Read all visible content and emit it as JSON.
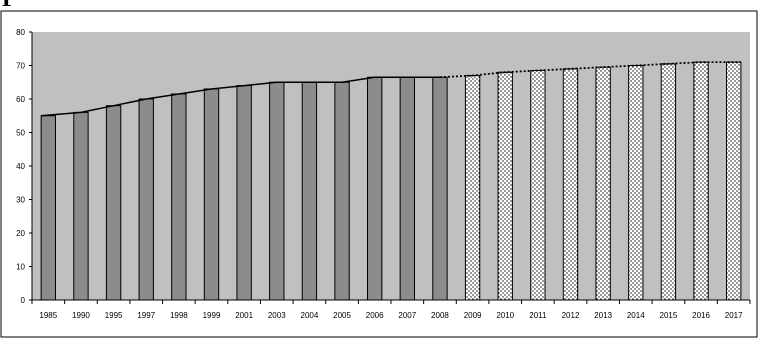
{
  "heading": "P",
  "colors": {
    "frame": "#ffffff",
    "plot_area": "#c0c0c0",
    "historical_bar": "#8c8c8c",
    "projected_bar_fill": "#ffffff",
    "projected_bar_dots": "#000000",
    "line": "#000000"
  },
  "chart_data": {
    "type": "bar",
    "title": "",
    "xlabel": "",
    "ylabel": "",
    "ylim": [
      0,
      80
    ],
    "yticks": [
      0,
      10,
      20,
      30,
      40,
      50,
      60,
      70,
      80
    ],
    "categories": [
      "1985",
      "1990",
      "1995",
      "1997",
      "1998",
      "1999",
      "2001",
      "2003",
      "2004",
      "2005",
      "2006",
      "2007",
      "2008",
      "2009",
      "2010",
      "2011",
      "2012",
      "2013",
      "2014",
      "2015",
      "2016",
      "2017"
    ],
    "values": [
      55,
      56,
      58,
      60,
      61.5,
      63,
      64,
      65,
      65,
      65,
      66.5,
      66.5,
      66.5,
      67,
      68,
      68.5,
      69,
      69.5,
      70,
      70.5,
      71,
      71
    ],
    "projected_from_index": 13,
    "grid": false,
    "legend": "none"
  }
}
